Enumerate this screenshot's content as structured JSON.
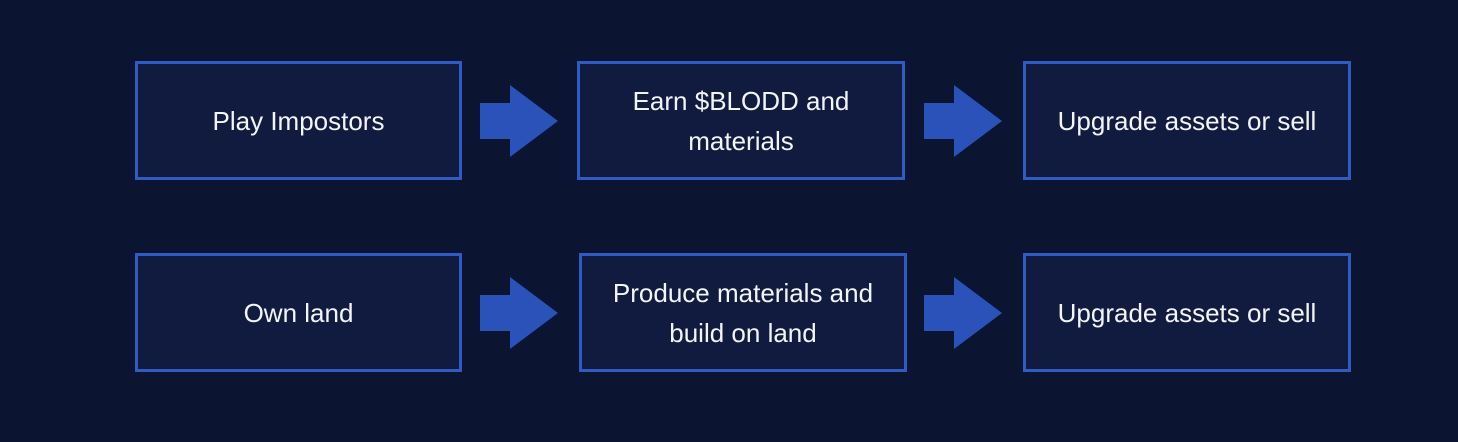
{
  "colors": {
    "background": "#0b1430",
    "box_fill": "#111b40",
    "box_border": "#2f5bc4",
    "arrow": "#2a52b8",
    "text": "#f2f4f8"
  },
  "rows": [
    {
      "steps": [
        {
          "label": "Play Impostors"
        },
        {
          "label": "Earn $BLODD and materials"
        },
        {
          "label": "Upgrade assets or sell"
        }
      ]
    },
    {
      "steps": [
        {
          "label": "Own land"
        },
        {
          "label": "Produce materials and build on land"
        },
        {
          "label": "Upgrade assets or sell"
        }
      ]
    }
  ]
}
